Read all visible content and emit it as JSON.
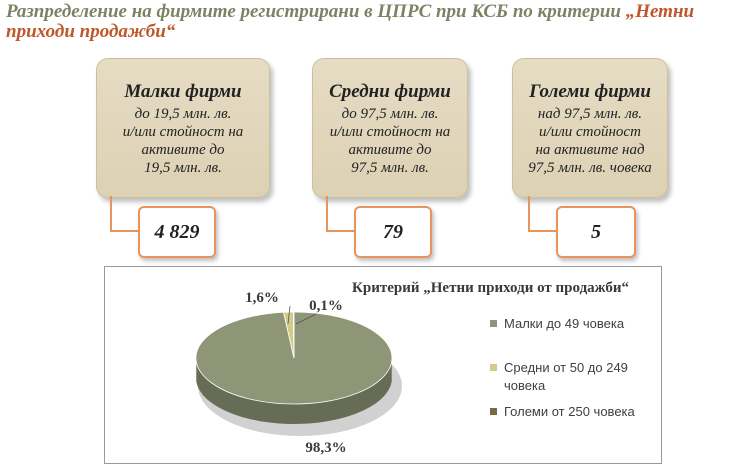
{
  "title": {
    "main": "Разпределение  на фирмите регистрирани в ЦПРС при КСБ по критерии ",
    "highlight": "„Нетни приходи продажби“"
  },
  "categories": [
    {
      "name": "Малки фирми",
      "desc1": "до 19,5 млн. лв.",
      "desc2": "и/или стойност на",
      "desc3": "активите до",
      "desc4": "19,5 млн. лв.",
      "value": "4 829"
    },
    {
      "name": "Средни фирми",
      "desc1": "до 97,5 млн. лв.",
      "desc2": "и/или стойност на",
      "desc3": "активите до",
      "desc4": "97,5 млн. лв.",
      "value": "79"
    },
    {
      "name": "Големи фирми",
      "desc1": "над 97,5 млн. лв.",
      "desc2": "и/или стойност",
      "desc3": "на активите над",
      "desc4": "97,5 млн. лв. човека",
      "value": "5"
    }
  ],
  "colors": {
    "small": "#8e9677",
    "medium": "#d2cc88",
    "large": "#7a6a44",
    "accent": "#e8955b"
  },
  "chart_data": {
    "type": "pie",
    "title": "Критерий „Нетни приходи от продажби“",
    "series": [
      {
        "name": "Малки  до 49 човека",
        "value": 98.3,
        "label": "98,3%"
      },
      {
        "name": "Средни от 50 до 249 човека",
        "value": 1.6,
        "label": "1,6%"
      },
      {
        "name": "Големи от 250 човека",
        "value": 0.1,
        "label": "0,1%"
      }
    ],
    "legend_position": "right"
  }
}
